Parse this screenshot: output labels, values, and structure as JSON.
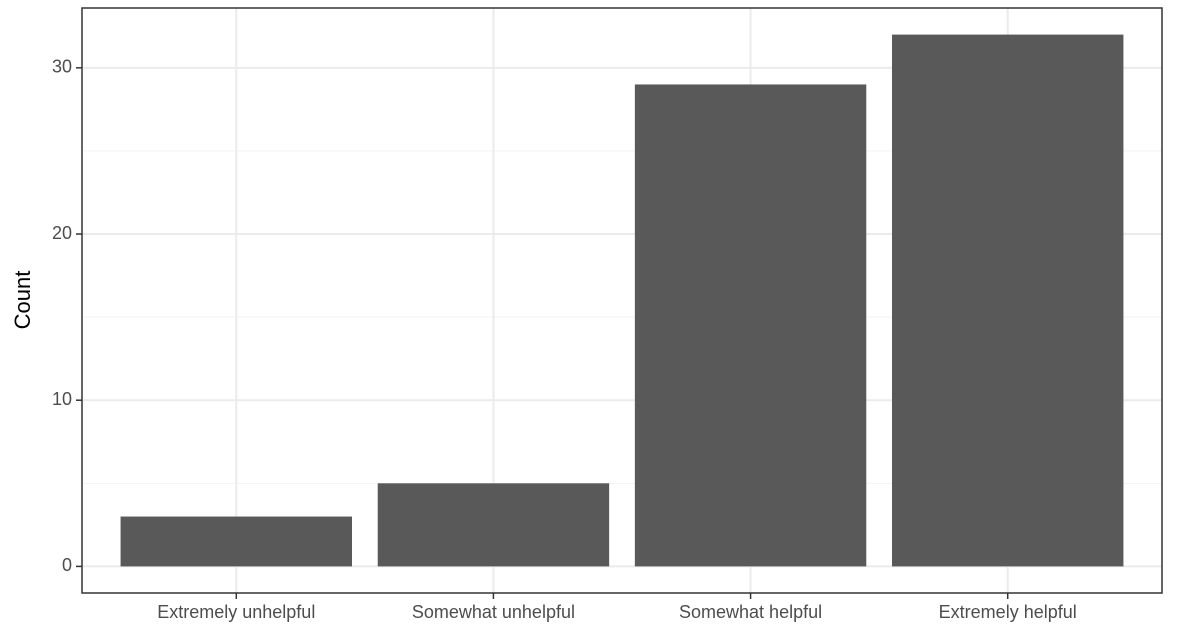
{
  "chart_data": {
    "type": "bar",
    "y_label": "Count",
    "categories": [
      "Extremely unhelpful",
      "Somewhat unhelpful",
      "Somewhat helpful",
      "Extremely helpful"
    ],
    "values": [
      3,
      5,
      29,
      32
    ],
    "color": "#595959",
    "ylim": [
      -1.6,
      33.6
    ],
    "yticks": [
      0,
      10,
      20,
      30
    ],
    "yticks_minor": [
      5,
      15,
      25
    ],
    "grid": true
  }
}
